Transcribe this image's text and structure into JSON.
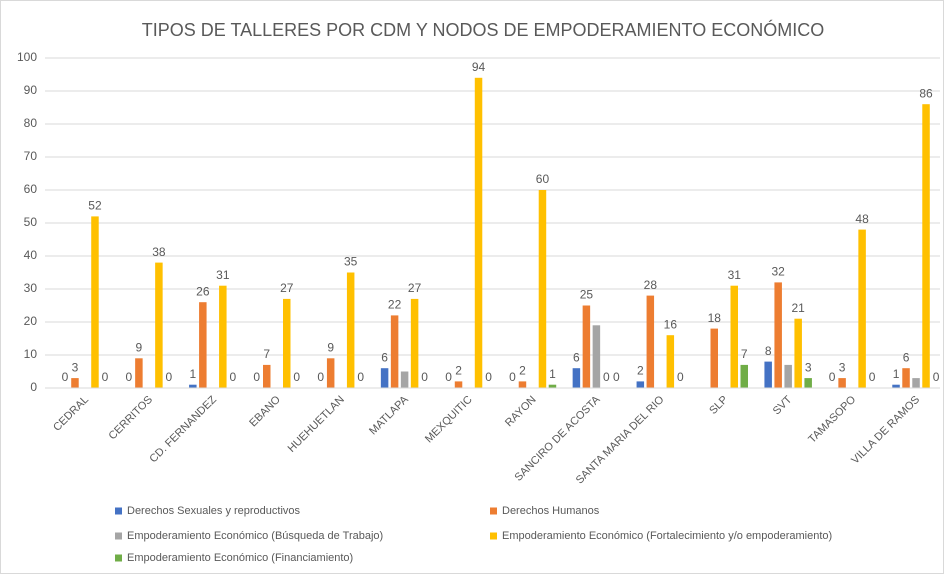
{
  "chart_data": {
    "type": "bar",
    "title": "TIPOS DE TALLERES POR CDM Y NODOS DE EMPODERAMIENTO ECONÓMICO",
    "categories": [
      "CEDRAL",
      "CERRITOS",
      "CD. FERNANDEZ",
      "EBANO",
      "HUEHUETLAN",
      "MATLAPA",
      "MEXQUITIC",
      "RAYON",
      "SANCIRO DE ACOSTA",
      "SANTA MARIA DEL RIO",
      "SLP",
      "SVT",
      "TAMASOPO",
      "VILLA DE RAMOS"
    ],
    "series": [
      {
        "name": "Derechos Sexuales y reproductivos",
        "color": "#4472c4",
        "labels": true,
        "values": [
          0,
          0,
          1,
          0,
          0,
          6,
          0,
          0,
          6,
          2,
          null,
          8,
          0,
          1
        ]
      },
      {
        "name": "Derechos Humanos",
        "color": "#ed7d31",
        "labels": true,
        "values": [
          3,
          9,
          26,
          7,
          9,
          22,
          2,
          2,
          25,
          28,
          18,
          32,
          3,
          6
        ]
      },
      {
        "name": "Empoderamiento Económico (Búsqueda de Trabajo)",
        "color": "#a5a5a5",
        "labels": false,
        "values": [
          0,
          0,
          0,
          0,
          0,
          5,
          0,
          0,
          19,
          0,
          0,
          7,
          0,
          3
        ]
      },
      {
        "name": "Empoderamiento Económico (Fortalecimiento y/o empoderamiento)",
        "color": "#ffc000",
        "labels": true,
        "values": [
          52,
          38,
          31,
          27,
          35,
          27,
          94,
          60,
          0,
          16,
          31,
          21,
          48,
          86
        ]
      },
      {
        "name": "Empoderamiento Económico (Financiamiento)",
        "color": "#70ad47",
        "labels": true,
        "values": [
          0,
          0,
          0,
          0,
          0,
          0,
          0,
          1,
          0,
          0,
          7,
          3,
          0,
          0
        ]
      }
    ],
    "ylim": [
      0,
      100
    ],
    "yticks": [
      0,
      10,
      20,
      30,
      40,
      50,
      60,
      70,
      80,
      90,
      100
    ],
    "grid": true,
    "legend": "bottom"
  }
}
